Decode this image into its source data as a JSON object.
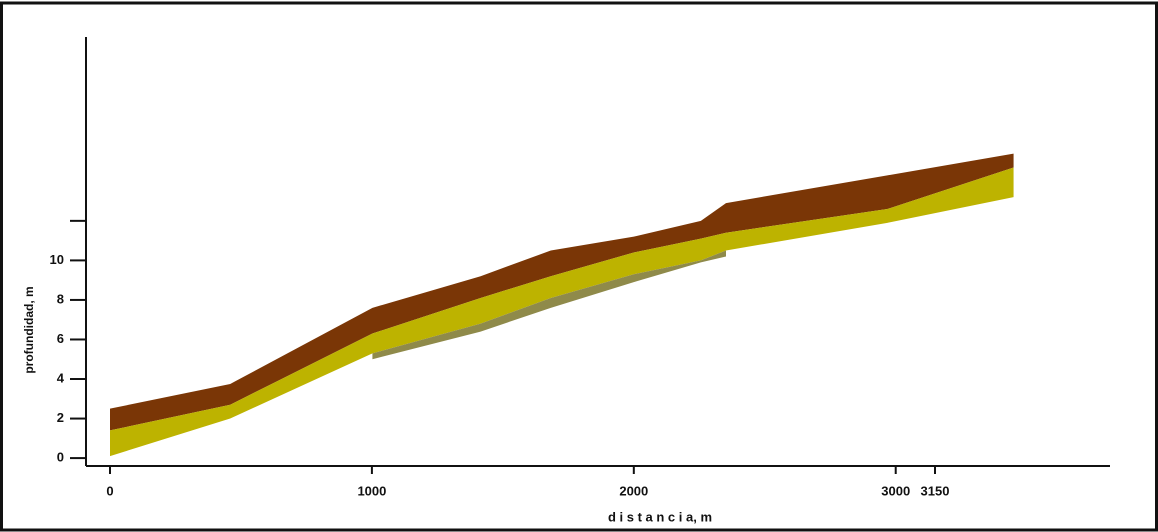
{
  "chart_data": {
    "type": "layers",
    "x_label": "d i s t a n c i a, m",
    "y_label": "profundidad, m",
    "x": [
      0,
      459,
      1002,
      1415,
      1683,
      2000,
      2256,
      2352,
      2968,
      3450
    ],
    "layers": [
      {
        "color": "#7a3606",
        "top": [
          2.5,
          3.75,
          7.6,
          9.2,
          10.5,
          11.2,
          12.0,
          12.9,
          14.3,
          15.4
        ],
        "bottom": [
          1.4,
          2.7,
          6.3,
          8.1,
          9.2,
          10.4,
          11.1,
          11.4,
          12.6,
          14.7
        ]
      },
      {
        "color": "#bdb300",
        "top": [
          1.4,
          2.7,
          6.3,
          8.1,
          9.2,
          10.4,
          11.1,
          11.4,
          12.6,
          14.7
        ],
        "bottom": [
          0.1,
          2.0,
          5.3,
          6.8,
          8.1,
          9.3,
          10.0,
          10.5,
          11.9,
          13.2
        ]
      },
      {
        "color": "#8f8a4a",
        "top": [
          null,
          null,
          5.3,
          6.8,
          8.1,
          9.3,
          10.0,
          10.5,
          null,
          null
        ],
        "bottom": [
          null,
          null,
          5.0,
          6.4,
          7.6,
          8.9,
          9.9,
          10.2,
          null,
          null
        ]
      }
    ],
    "xlim": [
      0,
      3150
    ],
    "ylim": [
      -0.4,
      21.3
    ],
    "xticks": [
      0,
      1000,
      2000,
      3000,
      3150
    ],
    "yticks": [
      0,
      2,
      4,
      6,
      8,
      10,
      {
        "value": 12,
        "label": null
      }
    ]
  }
}
